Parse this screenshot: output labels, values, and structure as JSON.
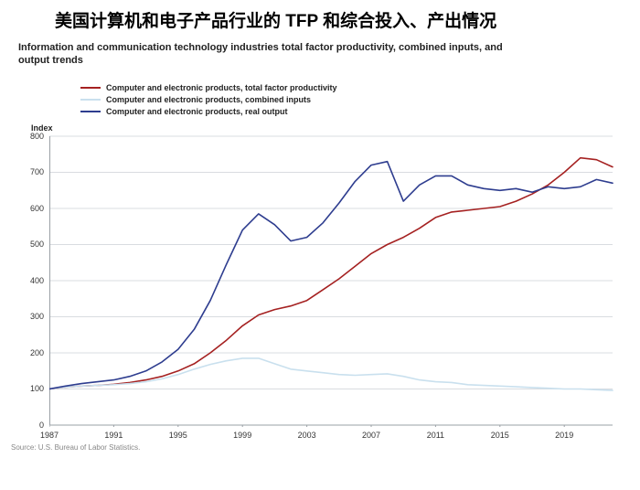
{
  "page": {
    "title_zh": "美国计算机和电子产品行业的 TFP 和综合投入、产出情况",
    "subtitle_en": "Information and communication technology industries total factor productivity, combined inputs, and output trends",
    "y_axis_title": "Index",
    "source": "Source: U.S. Bureau of Labor Statistics."
  },
  "chart": {
    "type": "line",
    "background_color": "#ffffff",
    "axis_color": "#9aa0a6",
    "grid_color": "#d9dce0",
    "xlim": [
      1987,
      2022
    ],
    "ylim": [
      0,
      800
    ],
    "ytick_step": 100,
    "y_ticks": [
      0,
      100,
      200,
      300,
      400,
      500,
      600,
      700,
      800
    ],
    "x_ticks": [
      1987,
      1991,
      1995,
      1999,
      2003,
      2007,
      2011,
      2015,
      2019
    ],
    "x_years": [
      1987,
      1988,
      1989,
      1990,
      1991,
      1992,
      1993,
      1994,
      1995,
      1996,
      1997,
      1998,
      1999,
      2000,
      2001,
      2002,
      2003,
      2004,
      2005,
      2006,
      2007,
      2008,
      2009,
      2010,
      2011,
      2012,
      2013,
      2014,
      2015,
      2016,
      2017,
      2018,
      2019,
      2020,
      2021,
      2022
    ],
    "title_fontsize": 11,
    "label_fontsize": 9,
    "line_width": 1.6,
    "legend": {
      "position": "top-left",
      "items": [
        {
          "label": "Computer and electronic products, total factor productivity",
          "color": "#a52121"
        },
        {
          "label": "Computer and electronic products, combined inputs",
          "color": "#c9e0ee"
        },
        {
          "label": "Computer and electronic products, real output",
          "color": "#2e3d8f"
        }
      ]
    },
    "series": [
      {
        "key": "tfp",
        "color": "#a52121",
        "values": [
          100,
          105,
          108,
          110,
          113,
          118,
          125,
          135,
          150,
          170,
          200,
          235,
          275,
          305,
          320,
          330,
          345,
          375,
          405,
          440,
          475,
          500,
          520,
          545,
          575,
          590,
          595,
          600,
          605,
          620,
          640,
          665,
          700,
          740,
          735,
          715
        ]
      },
      {
        "key": "combined_inputs",
        "color": "#c9e0ee",
        "values": [
          100,
          105,
          108,
          110,
          112,
          115,
          120,
          128,
          140,
          155,
          168,
          178,
          185,
          185,
          170,
          155,
          150,
          145,
          140,
          138,
          140,
          142,
          135,
          125,
          120,
          118,
          112,
          110,
          108,
          106,
          104,
          102,
          100,
          100,
          98,
          96
        ]
      },
      {
        "key": "real_output",
        "color": "#2e3d8f",
        "values": [
          100,
          108,
          115,
          120,
          125,
          135,
          150,
          175,
          210,
          265,
          345,
          445,
          540,
          585,
          555,
          510,
          520,
          560,
          615,
          675,
          720,
          730,
          620,
          665,
          690,
          690,
          665,
          655,
          650,
          655,
          645,
          660,
          655,
          660,
          680,
          670
        ]
      }
    ]
  }
}
